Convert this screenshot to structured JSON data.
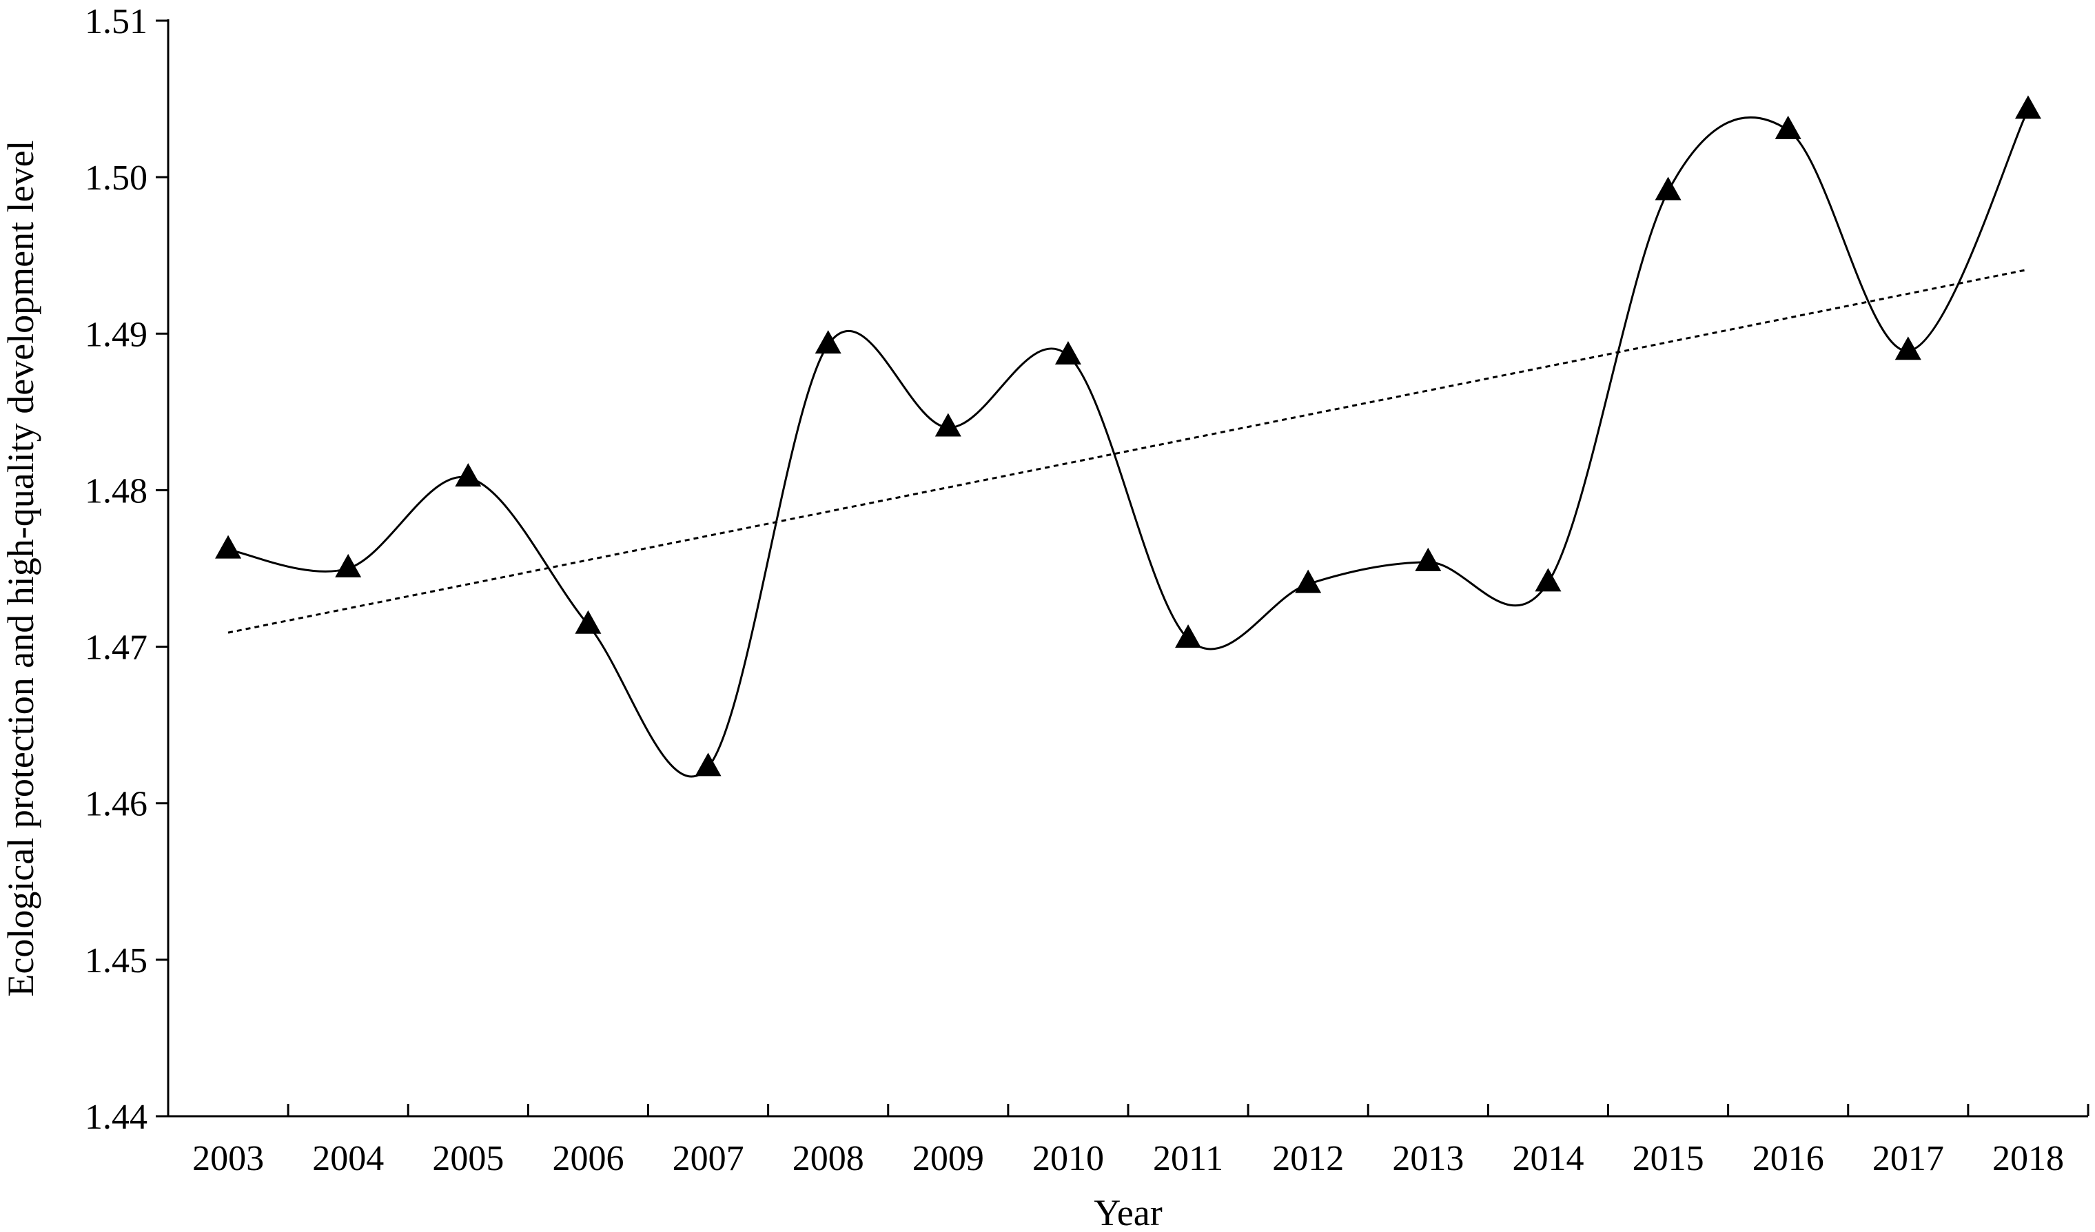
{
  "chart_data": {
    "type": "line",
    "xlabel": "Year",
    "ylabel": "Ecological protection and high-quality development level",
    "categories": [
      "2003",
      "2004",
      "2005",
      "2006",
      "2007",
      "2008",
      "2009",
      "2010",
      "2011",
      "2012",
      "2013",
      "2014",
      "2015",
      "2016",
      "2017",
      "2018"
    ],
    "ylim": [
      1.44,
      1.51
    ],
    "yticks": [
      "1.44",
      "1.45",
      "1.46",
      "1.47",
      "1.48",
      "1.49",
      "1.50",
      "1.51"
    ],
    "series": [
      {
        "values": [
          1.4762,
          1.475,
          1.4808,
          1.4714,
          1.4623,
          1.4893,
          1.484,
          1.4886,
          1.4705,
          1.474,
          1.4754,
          1.4741,
          1.4991,
          1.503,
          1.4889,
          1.5043
        ],
        "marker": "triangle",
        "line": "smooth",
        "color": "#000000"
      }
    ],
    "trendline": {
      "style": "dotted",
      "start": 1.4709,
      "end": 1.4941,
      "color": "#000000"
    },
    "grid": false,
    "legend": "none"
  }
}
